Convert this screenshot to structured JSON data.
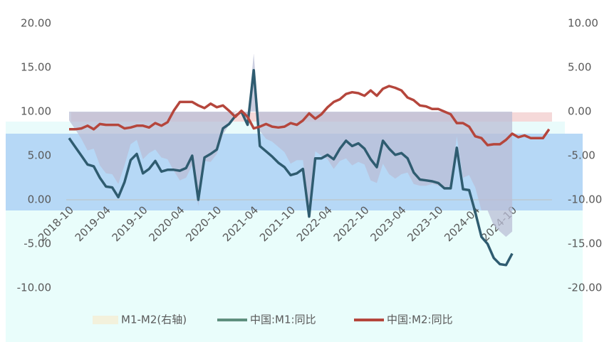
{
  "chart_data": {
    "type": "line",
    "categories": [
      "2018-10",
      null,
      null,
      null,
      null,
      null,
      "2019-04",
      null,
      null,
      null,
      null,
      null,
      "2019-10",
      null,
      null,
      null,
      null,
      null,
      "2020-04",
      null,
      null,
      null,
      null,
      null,
      "2020-10",
      null,
      null,
      null,
      null,
      null,
      "2021-04",
      null,
      null,
      null,
      null,
      null,
      "2021-10",
      null,
      null,
      null,
      null,
      null,
      "2022-04",
      null,
      null,
      null,
      null,
      null,
      "2022-10",
      null,
      null,
      null,
      null,
      null,
      "2023-04",
      null,
      null,
      null,
      null,
      null,
      "2023-10",
      null,
      null,
      null,
      null,
      null,
      "2024-04",
      null,
      null,
      null,
      null,
      null,
      "2024-10",
      null,
      null,
      null,
      null,
      null,
      null
    ],
    "series": [
      {
        "name": "M1-M2(右轴)",
        "color": "#b9bdd6",
        "kind": "area",
        "axis": "y2",
        "values": [
          -1.0,
          -2.0,
          -3.1,
          -4.4,
          -4.2,
          -6.1,
          -7.0,
          -7.1,
          -8.2,
          -6.1,
          -3.7,
          -3.2,
          -5.4,
          -4.7,
          -4.3,
          -5.2,
          -5.4,
          -6.7,
          -7.8,
          -7.5,
          -6.1,
          -10.7,
          -5.6,
          -5.7,
          -4.8,
          -2.6,
          -1.5,
          0.1,
          -0.1,
          -0.9,
          6.6,
          -2.2,
          -3.1,
          -3.4,
          -4.0,
          -4.6,
          -5.9,
          -5.5,
          -5.5,
          -11.7,
          -4.5,
          -5.0,
          -5.4,
          -6.5,
          -5.6,
          -5.3,
          -6.1,
          -5.7,
          -6.0,
          -7.8,
          -8.1,
          -5.9,
          -7.1,
          -7.6,
          -7.1,
          -6.9,
          -8.2,
          -8.4,
          -8.4,
          -8.2,
          -8.4,
          -8.7,
          -8.4,
          -2.8,
          -7.5,
          -7.2,
          -8.6,
          -11.2,
          -11.2,
          -12.9,
          -13.6,
          -14.2,
          -13.6,
          null,
          null,
          null,
          null,
          null,
          null
        ]
      },
      {
        "name": "中国:M1:同比",
        "color": "#2f5c70",
        "legend_color": "#5e8f7e",
        "values": [
          7.0,
          6.0,
          5.0,
          4.0,
          3.8,
          2.5,
          1.5,
          1.4,
          0.3,
          2.0,
          4.5,
          5.2,
          3.0,
          3.5,
          4.4,
          3.2,
          3.4,
          3.4,
          3.3,
          3.6,
          5.0,
          0.0,
          4.8,
          5.2,
          5.7,
          8.1,
          8.6,
          9.5,
          10.0,
          8.5,
          14.7,
          6.1,
          5.5,
          4.9,
          4.2,
          3.7,
          2.8,
          3.0,
          3.5,
          -1.9,
          4.7,
          4.7,
          5.1,
          4.6,
          5.8,
          6.7,
          6.1,
          6.4,
          5.8,
          4.6,
          3.7,
          6.7,
          5.8,
          5.1,
          5.3,
          4.7,
          3.1,
          2.3,
          2.2,
          2.1,
          1.9,
          1.3,
          1.3,
          5.9,
          1.2,
          1.1,
          -1.4,
          -4.2,
          -5.0,
          -6.6,
          -7.3,
          -7.4,
          -6.1,
          null,
          null,
          null,
          null,
          null,
          null
        ]
      },
      {
        "name": "中国:M2:同比",
        "color": "#b5463c",
        "values": [
          8.0,
          8.0,
          8.1,
          8.4,
          8.0,
          8.6,
          8.5,
          8.5,
          8.5,
          8.1,
          8.2,
          8.4,
          8.4,
          8.2,
          8.7,
          8.4,
          8.8,
          10.1,
          11.1,
          11.1,
          11.1,
          10.7,
          10.4,
          10.9,
          10.5,
          10.7,
          10.1,
          9.4,
          10.1,
          9.4,
          8.1,
          8.3,
          8.6,
          8.3,
          8.2,
          8.3,
          8.7,
          8.5,
          9.0,
          9.8,
          9.2,
          9.7,
          10.5,
          11.1,
          11.4,
          12.0,
          12.2,
          12.1,
          11.8,
          12.4,
          11.8,
          12.6,
          12.9,
          12.7,
          12.4,
          11.6,
          11.3,
          10.7,
          10.6,
          10.3,
          10.3,
          10.0,
          9.7,
          8.7,
          8.7,
          8.3,
          7.2,
          7.0,
          6.2,
          6.3,
          6.3,
          6.8,
          7.5,
          7.1,
          7.3,
          7.0,
          7.0,
          7.0,
          8.0
        ]
      }
    ],
    "ylim": [
      -10,
      20
    ],
    "yticks": [
      {
        "value": -10,
        "label": "-10.00"
      },
      {
        "value": -5,
        "label": "-5.00"
      },
      {
        "value": 0,
        "label": "0.00"
      },
      {
        "value": 5,
        "label": "5.00"
      },
      {
        "value": 10,
        "label": "10.00"
      },
      {
        "value": 15,
        "label": "15.00"
      },
      {
        "value": 20,
        "label": "20.00"
      }
    ],
    "y2lim": [
      -20,
      10
    ],
    "y2ticks": [
      {
        "value": -20,
        "label": "-20.00"
      },
      {
        "value": -15,
        "label": "-15.00"
      },
      {
        "value": -10,
        "label": "-10.00"
      },
      {
        "value": -5,
        "label": "-5.00"
      },
      {
        "value": 0,
        "label": "0.00"
      },
      {
        "value": 5,
        "label": "5.00"
      },
      {
        "value": 10,
        "label": "10.00"
      }
    ],
    "legend": "bottom"
  }
}
